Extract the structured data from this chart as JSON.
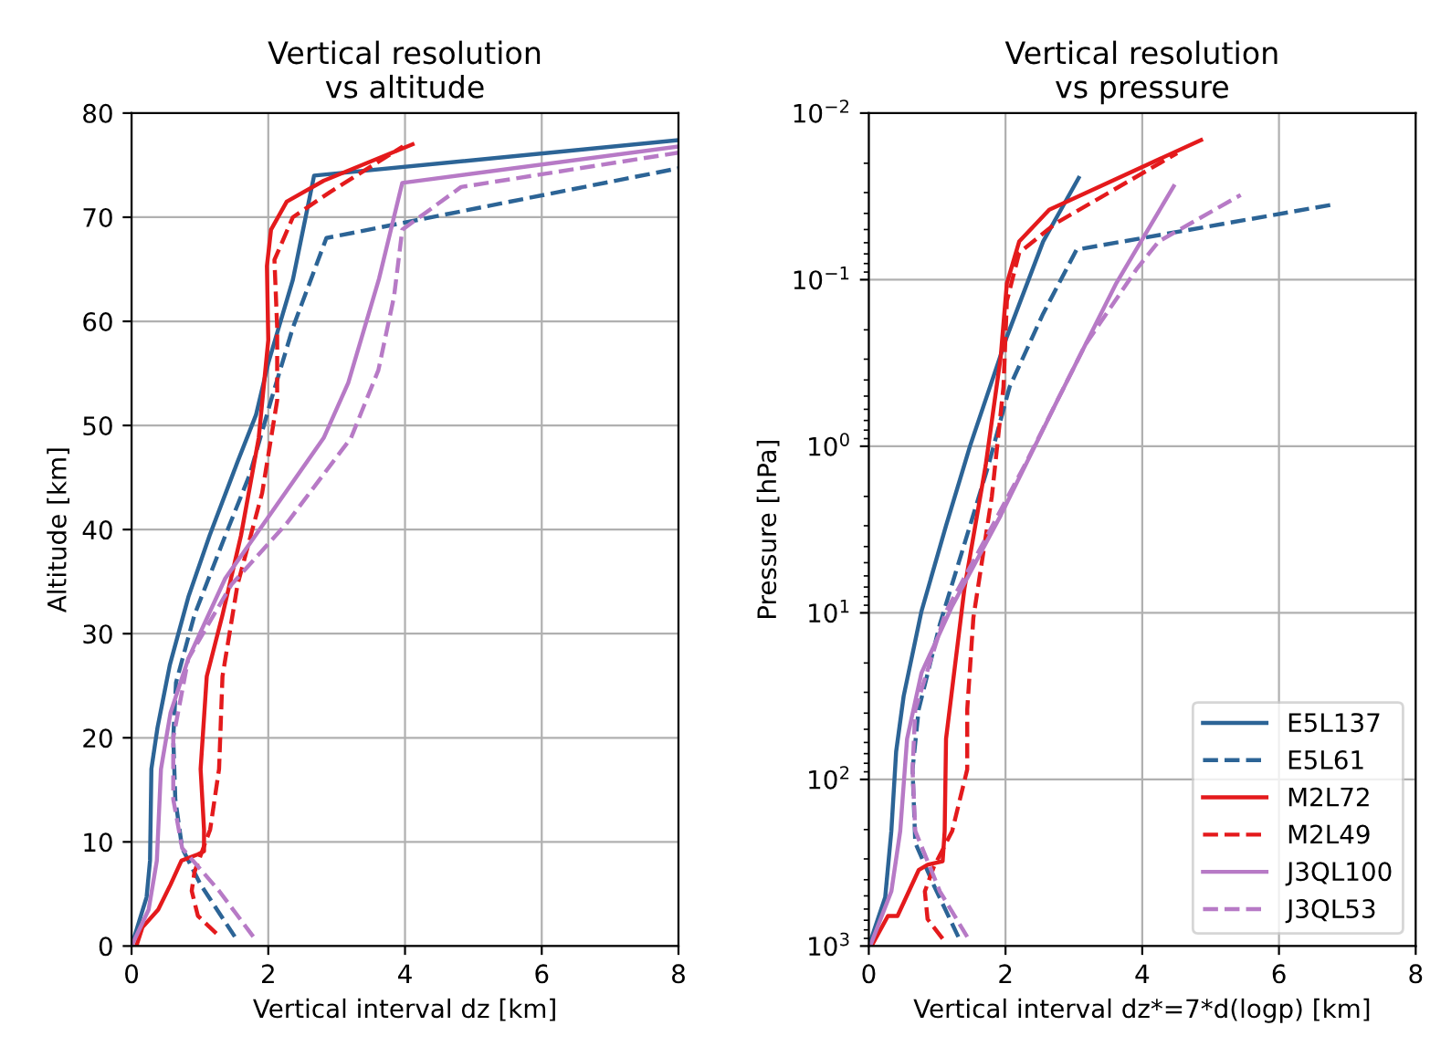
{
  "chart_data": [
    {
      "type": "line",
      "title": "Vertical resolution\nvs altitude",
      "xlabel": "Vertical interval dz [km]",
      "ylabel": "Altitude [km]",
      "xlim": [
        0,
        8
      ],
      "xticks": [
        0,
        2,
        4,
        6,
        8
      ],
      "ylim": [
        0,
        80
      ],
      "yticks": [
        0,
        10,
        20,
        30,
        40,
        50,
        60,
        70,
        80
      ],
      "grid": true,
      "legend": false,
      "series": [
        {
          "color": "#2c6496",
          "line_style": "solid",
          "x": [
            0,
            0.22,
            0.27,
            0.29,
            0.38,
            0.56,
            0.83,
            1.14,
            1.55,
            1.82,
            2.0,
            2.36,
            2.67,
            8
          ],
          "values": [
            0,
            4.7,
            8.2,
            17,
            21,
            27,
            33.5,
            39.4,
            46.5,
            51,
            56,
            64,
            74,
            77.4
          ]
        },
        {
          "color": "#2c6496",
          "line_style": "dashed",
          "x": [
            1.51,
            1.01,
            0.74,
            0.64,
            0.61,
            0.65,
            0.92,
            1.37,
            1.73,
            2.04,
            2.36,
            2.85,
            8
          ],
          "values": [
            0.9,
            5.9,
            9.4,
            14.1,
            20,
            25.3,
            31.8,
            39.4,
            45.3,
            52.4,
            59.4,
            68,
            74.7
          ]
        },
        {
          "color": "#e41a1c",
          "line_style": "solid",
          "x": [
            0.07,
            0.16,
            0.39,
            0.57,
            0.73,
            0.97,
            1.06,
            1.06,
            1.01,
            1.1,
            1.33,
            1.6,
            1.86,
            2.0,
            1.98,
            2.04,
            2.27,
            2.81,
            4.11
          ],
          "values": [
            0,
            1.8,
            3.5,
            5.9,
            8.2,
            8.8,
            9.1,
            11.2,
            17,
            25.9,
            31.8,
            39.4,
            48.8,
            58.2,
            65.3,
            68.8,
            71.5,
            73.5,
            77
          ]
        },
        {
          "color": "#e41a1c",
          "line_style": "dashed",
          "x": [
            1.24,
            0.97,
            0.88,
            0.92,
            1.15,
            1.28,
            1.33,
            1.55,
            1.91,
            2.13,
            2.13,
            2.09,
            2.36,
            2.9,
            3.97
          ],
          "values": [
            1.2,
            2.9,
            5.3,
            7.1,
            11.2,
            17,
            25.9,
            34.7,
            43.5,
            52.4,
            59.4,
            65.9,
            70,
            72.4,
            76.8
          ]
        },
        {
          "color": "#b77ac6",
          "line_style": "solid",
          "x": [
            0,
            0.25,
            0.37,
            0.43,
            0.57,
            0.83,
            1.37,
            2.0,
            2.81,
            3.17,
            3.62,
            3.96,
            8
          ],
          "values": [
            0,
            3.5,
            8.2,
            17,
            22.4,
            27.6,
            35.3,
            41.2,
            48.8,
            54.1,
            64.1,
            73.3,
            76.8
          ]
        },
        {
          "color": "#b77ac6",
          "line_style": "dashed",
          "x": [
            1.78,
            1.28,
            0.74,
            0.61,
            0.61,
            0.83,
            1.46,
            2.27,
            3.21,
            3.61,
            3.84,
            3.96,
            4.82,
            8
          ],
          "values": [
            0.9,
            5.3,
            9.4,
            14.1,
            20,
            27.6,
            34.7,
            40.6,
            48.8,
            55.3,
            62.4,
            68.8,
            72.9,
            76.2
          ]
        }
      ]
    },
    {
      "type": "line",
      "title": "Vertical resolution\nvs pressure",
      "xlabel": "Vertical interval dz*=7*d(logp) [km]",
      "ylabel": "Pressure [hPa]",
      "log": "y",
      "xlim": [
        0,
        8
      ],
      "xticks": [
        0,
        2,
        4,
        6,
        8
      ],
      "ylim": [
        1000,
        0.01
      ],
      "yticks": [
        {
          "value": 1000,
          "label": "10$^{3}$"
        },
        {
          "value": 100,
          "label": "10$^{2}$"
        },
        {
          "value": 10,
          "label": "10$^{1}$"
        },
        {
          "value": 1,
          "label": "10$^{0}$"
        },
        {
          "value": 0.1,
          "label": "10$^{−1}$"
        },
        {
          "value": 0.01,
          "label": "10$^{−2}$"
        }
      ],
      "grid": true,
      "legend": "lower right",
      "series": [
        {
          "name": "E5L137",
          "color": "#2c6496",
          "line_style": "solid",
          "x": [
            0,
            0.24,
            0.33,
            0.4,
            0.51,
            0.77,
            1.13,
            1.48,
            2.02,
            2.55,
            3.07
          ],
          "values": [
            1000,
            510,
            204,
            68,
            31.6,
            9.8,
            3.0,
            1.0,
            0.22,
            0.059,
            0.0245
          ]
        },
        {
          "name": "E5L61",
          "color": "#2c6496",
          "line_style": "dashed",
          "x": [
            1.31,
            0.95,
            0.68,
            0.64,
            0.73,
            1.04,
            1.48,
            1.75,
            2.06,
            2.55,
            3.04,
            6.77
          ],
          "values": [
            881,
            431,
            240,
            87,
            38,
            11.7,
            3.0,
            1.3,
            0.44,
            0.16,
            0.066,
            0.0355
          ]
        },
        {
          "name": "M2L72",
          "color": "#e41a1c",
          "line_style": "solid",
          "x": [
            0.04,
            0.28,
            0.42,
            0.73,
            0.86,
            1.08,
            1.11,
            1.13,
            1.4,
            1.71,
            1.93,
            2.02,
            2.2,
            2.64,
            4.86
          ],
          "values": [
            1000,
            660,
            660,
            350,
            325,
            310,
            204,
            57,
            7.1,
            1.3,
            0.29,
            0.105,
            0.059,
            0.038,
            0.0145
          ]
        },
        {
          "name": "M2L49",
          "color": "#e41a1c",
          "line_style": "dashed",
          "x": [
            1.08,
            0.86,
            0.82,
            0.95,
            1.22,
            1.44,
            1.44,
            1.53,
            1.8,
            1.97,
            2.02,
            2.2,
            2.73,
            4.51
          ],
          "values": [
            904,
            690,
            470,
            336,
            204,
            87,
            38,
            10.7,
            2.0,
            0.44,
            0.134,
            0.069,
            0.046,
            0.0174
          ]
        },
        {
          "name": "J3QL100",
          "color": "#b77ac6",
          "line_style": "solid",
          "x": [
            0.02,
            0.33,
            0.46,
            0.56,
            0.77,
            1.22,
            1.93,
            2.73,
            3.62,
            4.46
          ],
          "values": [
            1000,
            470,
            204,
            57,
            23,
            9.1,
            2.6,
            0.56,
            0.105,
            0.0275
          ]
        },
        {
          "name": "J3QL53",
          "color": "#b77ac6",
          "line_style": "dashed",
          "x": [
            1.44,
            1.04,
            0.68,
            0.64,
            0.68,
            1.13,
            1.66,
            2.28,
            3.17,
            3.93,
            4.24,
            5.44
          ],
          "values": [
            881,
            470,
            204,
            87,
            38,
            9.8,
            3.9,
            1.3,
            0.245,
            0.085,
            0.059,
            0.031
          ]
        }
      ]
    }
  ]
}
